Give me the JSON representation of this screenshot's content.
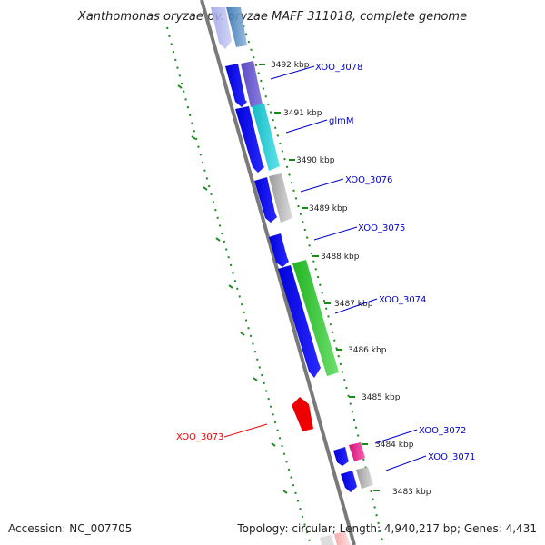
{
  "title": "Xanthomonas oryzae pv. oryzae MAFF 311018, complete genome",
  "footer": {
    "accession": "Accession: NC_007705",
    "summary": "Topology: circular; Length: 4,940,217 bp; Genes: 4,431"
  },
  "colors": {
    "backbone": "#808080",
    "dotted_tracks": "#1a8a1a",
    "tick": "#1a8a1a",
    "cds_forward": "#0000ee",
    "label_blue": "#0000cc",
    "label_red": "#ee0000"
  },
  "ticks": [
    {
      "label": "3492 kbp"
    },
    {
      "label": "3491 kbp"
    },
    {
      "label": "3490 kbp"
    },
    {
      "label": "3489 kbp"
    },
    {
      "label": "3488 kbp"
    },
    {
      "label": "3487 kbp"
    },
    {
      "label": "3486 kbp"
    },
    {
      "label": "3485 kbp"
    },
    {
      "label": "3484 kbp"
    },
    {
      "label": "3483 kbp"
    }
  ],
  "gene_labels": [
    {
      "name": "XOO_3078",
      "color": "#0000cc"
    },
    {
      "name": "glmM",
      "color": "#0000cc"
    },
    {
      "name": "XOO_3076",
      "color": "#0000cc"
    },
    {
      "name": "XOO_3075",
      "color": "#0000cc"
    },
    {
      "name": "XOO_3074",
      "color": "#0000cc"
    },
    {
      "name": "XOO_3073",
      "color": "#ee0000"
    },
    {
      "name": "XOO_3072",
      "color": "#0000cc"
    },
    {
      "name": "XOO_3071",
      "color": "#0000cc"
    }
  ],
  "feature_blocks": [
    {
      "kind": "cds-forward",
      "color": "#0000ee"
    },
    {
      "kind": "gene-3078",
      "color": "#6a5acd"
    },
    {
      "kind": "gene-glmM",
      "color": "#20c8d0"
    },
    {
      "kind": "gene-3076",
      "color": "#bbbbbb"
    },
    {
      "kind": "gene-3074",
      "color": "#33cc33"
    },
    {
      "kind": "gene-3073",
      "color": "#ee0000"
    },
    {
      "kind": "gene-3072",
      "color": "#ee1a8c"
    },
    {
      "kind": "gene-3071",
      "color": "#bbbbbb"
    }
  ]
}
